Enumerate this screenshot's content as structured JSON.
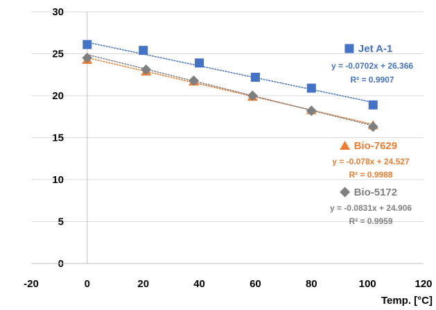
{
  "chart_data": {
    "type": "scatter",
    "title": "",
    "xlabel": "Temp. [°C]",
    "ylabel": "",
    "xlim": [
      -20,
      120
    ],
    "ylim": [
      0,
      30
    ],
    "xticks": [
      -20,
      0,
      20,
      40,
      60,
      80,
      100,
      120
    ],
    "yticks": [
      0,
      5,
      10,
      15,
      20,
      25,
      30
    ],
    "grid": "horizontal",
    "legend": "inline-right",
    "series": [
      {
        "name": "Jet A-1",
        "marker": "square",
        "color": "#4472C4",
        "x": [
          0,
          20,
          40,
          60,
          80,
          102
        ],
        "y": [
          26.1,
          25.4,
          23.9,
          22.2,
          20.9,
          18.9
        ],
        "trendline": {
          "slope": -0.0702,
          "intercept": 26.366
        },
        "equation": "y = -0.0702x + 26.366",
        "r2": "R² = 0.9907"
      },
      {
        "name": "Bio-7629",
        "marker": "triangle",
        "color": "#ED7D31",
        "x": [
          0,
          21,
          38,
          59,
          80,
          102
        ],
        "y": [
          24.3,
          22.9,
          21.7,
          19.9,
          18.3,
          16.5
        ],
        "trendline": {
          "slope": -0.078,
          "intercept": 24.527
        },
        "equation": "y = -0.078x + 24.527",
        "r2": "R² = 0.9988"
      },
      {
        "name": "Bio-5172",
        "marker": "diamond",
        "color": "#7F7F7F",
        "x": [
          0,
          21,
          38,
          59,
          80,
          102
        ],
        "y": [
          24.5,
          23.1,
          21.8,
          20.0,
          18.2,
          16.3
        ],
        "trendline": {
          "slope": -0.0831,
          "intercept": 24.906
        },
        "equation": "y = -0.0831x + 24.906",
        "r2": "R² = 0.9959"
      }
    ]
  }
}
